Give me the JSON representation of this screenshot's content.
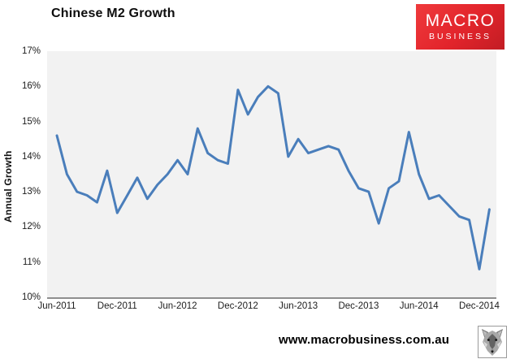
{
  "title": "Chinese M2 Growth",
  "brand": {
    "line1": "MACRO",
    "line2": "BUSINESS",
    "bg": "#e2242b",
    "text_color": "#ffffff"
  },
  "footer": {
    "url": "www.macrobusiness.com.au"
  },
  "chart_data": {
    "type": "line",
    "title": "Chinese M2 Growth",
    "xlabel": "",
    "ylabel": "Annual Growth",
    "ylim": [
      10,
      17
    ],
    "y_unit": "%",
    "grid": false,
    "legend": "none",
    "line_color": "#4a7ebb",
    "plot_bg": "#f2f2f2",
    "axis_color": "#8f8f8f",
    "y_tick_labels": [
      "17%",
      "16%",
      "15%",
      "14%",
      "13%",
      "12%",
      "11%",
      "10%"
    ],
    "x_tick_labels": [
      "Jun-2011",
      "Dec-2011",
      "Jun-2012",
      "Dec-2012",
      "Jun-2013",
      "Dec-2013",
      "Jun-2014",
      "Dec-2014"
    ],
    "x": [
      "Jun-2011",
      "Jul-2011",
      "Aug-2011",
      "Sep-2011",
      "Oct-2011",
      "Nov-2011",
      "Dec-2011",
      "Jan-2012",
      "Feb-2012",
      "Mar-2012",
      "Apr-2012",
      "May-2012",
      "Jun-2012",
      "Jul-2012",
      "Aug-2012",
      "Sep-2012",
      "Oct-2012",
      "Nov-2012",
      "Dec-2012",
      "Jan-2013",
      "Feb-2013",
      "Mar-2013",
      "Apr-2013",
      "May-2013",
      "Jun-2013",
      "Jul-2013",
      "Aug-2013",
      "Sep-2013",
      "Oct-2013",
      "Nov-2013",
      "Dec-2013",
      "Jan-2014",
      "Feb-2014",
      "Mar-2014",
      "Apr-2014",
      "May-2014",
      "Jun-2014",
      "Jul-2014",
      "Aug-2014",
      "Sep-2014",
      "Oct-2014",
      "Nov-2014",
      "Dec-2014",
      "Jan-2015"
    ],
    "values": [
      14.6,
      13.5,
      13.0,
      12.9,
      12.7,
      13.6,
      12.4,
      12.9,
      13.4,
      12.8,
      13.2,
      13.5,
      13.9,
      13.5,
      14.8,
      14.1,
      13.9,
      13.8,
      15.9,
      15.2,
      15.7,
      16.0,
      15.8,
      14.0,
      14.5,
      14.1,
      14.2,
      14.3,
      14.2,
      13.6,
      13.1,
      13.0,
      12.1,
      13.1,
      13.3,
      14.7,
      13.5,
      12.8,
      12.9,
      12.6,
      12.3,
      12.2,
      10.8,
      12.5
    ]
  }
}
